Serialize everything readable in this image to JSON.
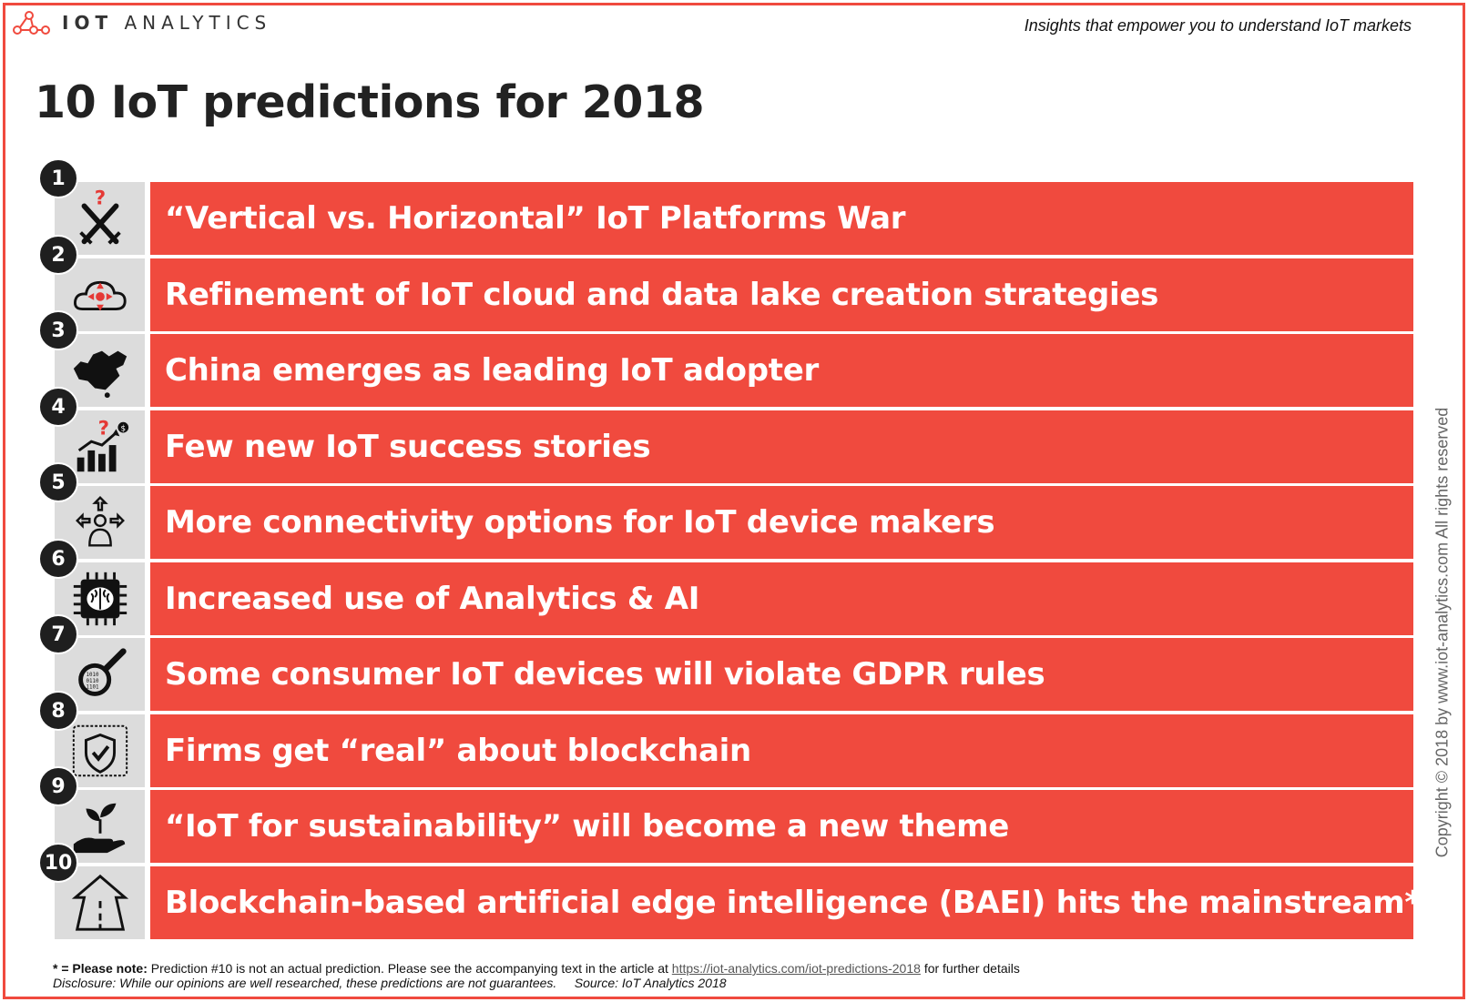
{
  "header": {
    "logo_text_bold": "IOT",
    "logo_text_light": "ANALYTICS",
    "tagline": "Insights that empower you to understand IoT markets"
  },
  "title": "10 IoT predictions for 2018",
  "predictions": [
    {
      "number": "1",
      "text": "“Vertical vs. Horizontal” IoT Platforms War",
      "icon": "crossed-swords-question-icon"
    },
    {
      "number": "2",
      "text": "Refinement of IoT cloud and data lake creation strategies",
      "icon": "cloud-arrows-icon"
    },
    {
      "number": "3",
      "text": "China emerges as leading IoT adopter",
      "icon": "china-map-icon"
    },
    {
      "number": "4",
      "text": "Few new IoT success stories",
      "icon": "growth-chart-question-icon"
    },
    {
      "number": "5",
      "text": "More connectivity options for IoT device makers",
      "icon": "person-arrows-icon"
    },
    {
      "number": "6",
      "text": "Increased use of Analytics & AI",
      "icon": "chip-brain-icon"
    },
    {
      "number": "7",
      "text": "Some consumer IoT devices will violate GDPR rules",
      "icon": "magnifier-data-icon"
    },
    {
      "number": "8",
      "text": "Firms get “real” about blockchain",
      "icon": "shield-chain-icon"
    },
    {
      "number": "9",
      "text": "“IoT for sustainability” will become a new theme",
      "icon": "hand-plant-icon"
    },
    {
      "number": "10",
      "text": "Blockchain-based artificial edge intelligence (BAEI) hits the mainstream*",
      "icon": "road-icon"
    }
  ],
  "copyright": "Copyright © 2018 by www.iot-analytics.com All rights reserved",
  "footnote": {
    "note_label": "* = Please note:",
    "note_text": "Prediction #10 is not an actual prediction. Please see the accompanying text in the article at",
    "link": "https://iot-analytics.com/iot-predictions-2018",
    "note_tail": "for further details",
    "disclosure": "Disclosure: While our opinions are well researched, these predictions are not guarantees.",
    "source": "Source: IoT Analytics 2018"
  },
  "colors": {
    "accent": "#f04a3e",
    "icon_bg": "#dcdcdc",
    "badge": "#1f1f1f"
  }
}
